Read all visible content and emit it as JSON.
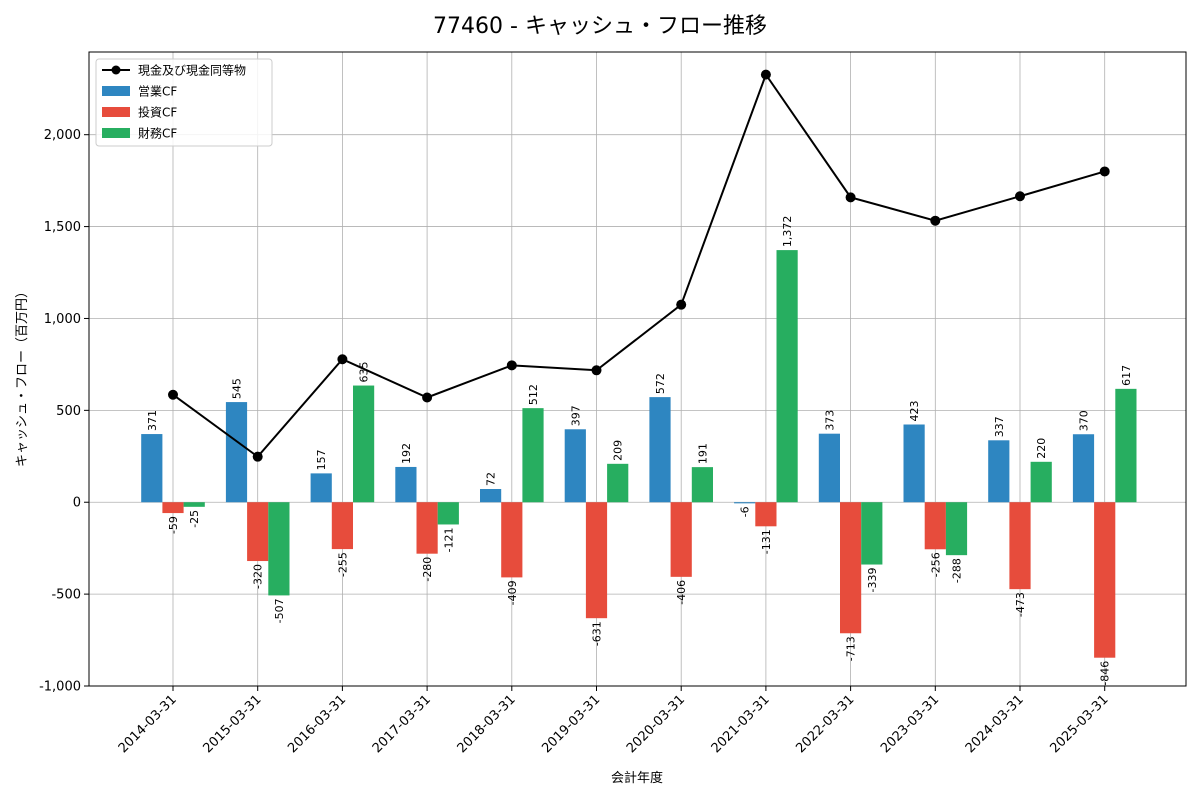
{
  "chart_data": {
    "type": "bar",
    "title": "77460 - キャッシュ・フロー推移",
    "xlabel": "会計年度",
    "ylabel": "キャッシュ・フロー（百万円）",
    "ylim": [
      -1000,
      2450
    ],
    "yticks": [
      -1000,
      -500,
      0,
      500,
      1000,
      1500,
      2000
    ],
    "ytick_labels": [
      "-1,000",
      "-500",
      "0",
      "500",
      "1,000",
      "1,500",
      "2,000"
    ],
    "grid": true,
    "legend_position": "top-left",
    "categories": [
      "2014-03-31",
      "2015-03-31",
      "2016-03-31",
      "2017-03-31",
      "2018-03-31",
      "2019-03-31",
      "2020-03-31",
      "2021-03-31",
      "2022-03-31",
      "2023-03-31",
      "2024-03-31",
      "2025-03-31"
    ],
    "series": [
      {
        "name": "営業CF",
        "kind": "bar",
        "color": "#2e86c1",
        "values": [
          371,
          545,
          157,
          192,
          72,
          397,
          572,
          -6,
          373,
          423,
          337,
          370
        ],
        "labels": [
          "371",
          "545",
          "157",
          "192",
          "72",
          "397",
          "572",
          "-6",
          "373",
          "423",
          "337",
          "370"
        ]
      },
      {
        "name": "投資CF",
        "kind": "bar",
        "color": "#e74c3c",
        "values": [
          -59,
          -320,
          -255,
          -280,
          -409,
          -631,
          -406,
          -131,
          -713,
          -256,
          -473,
          -846
        ],
        "labels": [
          "-59",
          "-320",
          "-255",
          "-280",
          "-409",
          "-631",
          "-406",
          "-131",
          "-713",
          "-256",
          "-473",
          "-846"
        ]
      },
      {
        "name": "財務CF",
        "kind": "bar",
        "color": "#27ae60",
        "values": [
          -25,
          -507,
          635,
          -121,
          512,
          209,
          191,
          1372,
          -339,
          -288,
          220,
          617
        ],
        "labels": [
          "-25",
          "-507",
          "635",
          "-121",
          "512",
          "209",
          "191",
          "1,372",
          "-339",
          "-288",
          "220",
          "617"
        ]
      },
      {
        "name": "現金及び現金同等物",
        "kind": "line",
        "color": "#000000",
        "values": [
          585,
          248,
          778,
          570,
          745,
          718,
          1075,
          2327,
          1659,
          1532,
          1665,
          1800
        ]
      }
    ]
  }
}
